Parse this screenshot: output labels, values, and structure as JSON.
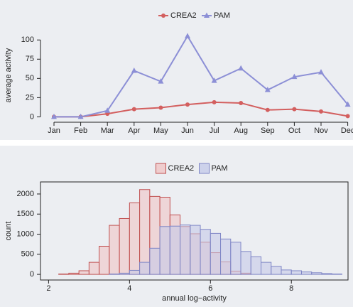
{
  "chart_data": [
    {
      "type": "line",
      "ylabel": "average activity",
      "legend": "top",
      "categories": [
        "Jan",
        "Feb",
        "Mar",
        "Apr",
        "May",
        "Jun",
        "Jul",
        "Aug",
        "Sep",
        "Oct",
        "Nov",
        "Dec"
      ],
      "ylim": [
        -7,
        115
      ],
      "yticks": [
        0,
        25,
        50,
        75,
        100
      ],
      "series": [
        {
          "name": "CREA2",
          "color": "#d35f5f",
          "marker": "circle",
          "values": [
            0,
            0,
            4,
            10,
            12,
            16,
            19,
            18,
            9,
            10,
            7,
            1
          ]
        },
        {
          "name": "PAM",
          "color": "#8c8fd6",
          "marker": "triangle",
          "values": [
            0,
            0,
            8,
            60,
            46,
            105,
            47,
            63,
            35,
            52,
            58,
            16
          ]
        }
      ]
    },
    {
      "type": "histogram",
      "xlabel": "annual log−activity",
      "ylabel": "count",
      "legend": "top",
      "xlim": [
        1.8,
        9.4
      ],
      "xticks": [
        2,
        4,
        6,
        8
      ],
      "ylim": [
        -140,
        2300
      ],
      "yticks": [
        0,
        500,
        1000,
        1500,
        2000
      ],
      "series": [
        {
          "name": "CREA2",
          "color": "#c05050",
          "fill": "#f0c4c4",
          "bins": [
            2.25,
            2.5,
            2.75,
            3.0,
            3.25,
            3.5,
            3.75,
            4.0,
            4.25,
            4.5,
            4.75,
            5.0,
            5.25,
            5.5,
            5.75,
            6.0,
            6.25,
            6.5,
            6.75,
            7.0
          ],
          "values": [
            10,
            30,
            90,
            300,
            700,
            1220,
            1390,
            1780,
            2110,
            1940,
            1920,
            1480,
            1190,
            1010,
            800,
            540,
            310,
            80,
            30
          ]
        },
        {
          "name": "PAM",
          "color": "#7f86c6",
          "fill": "#c6cae8",
          "bins": [
            3.5,
            3.75,
            4.0,
            4.25,
            4.5,
            4.75,
            5.0,
            5.25,
            5.5,
            5.75,
            6.0,
            6.25,
            6.5,
            6.75,
            7.0,
            7.25,
            7.5,
            7.75,
            8.0,
            8.25,
            8.5,
            8.75,
            9.0,
            9.25
          ],
          "values": [
            10,
            30,
            100,
            300,
            650,
            1190,
            1200,
            1230,
            1220,
            1120,
            1020,
            880,
            800,
            570,
            440,
            300,
            200,
            110,
            90,
            60,
            40,
            20,
            10
          ]
        }
      ]
    }
  ]
}
